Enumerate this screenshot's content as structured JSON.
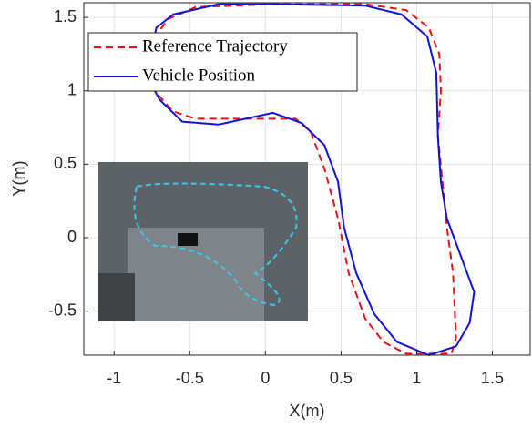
{
  "chart_data": {
    "type": "line",
    "xlabel": "X(m)",
    "ylabel": "Y(m)",
    "xlim": [
      -1.2,
      1.75
    ],
    "ylim": [
      -0.8,
      1.6
    ],
    "xticks": [
      -1,
      -0.5,
      0,
      0.5,
      1,
      1.5
    ],
    "yticks": [
      -0.5,
      0,
      0.5,
      1,
      1.5
    ],
    "grid": true,
    "legend": "upper left",
    "series": [
      {
        "name": "Reference Trajectory",
        "color": "#ee1111",
        "dash": true,
        "x": [
          -0.76,
          -0.61,
          -0.46,
          0.2,
          0.3,
          0.39,
          0.48,
          0.55,
          0.66,
          0.78,
          0.93,
          1.23,
          1.26,
          1.24,
          1.2,
          1.17,
          1.14,
          1.16,
          1.15,
          1.08,
          0.93,
          0.66,
          0.05,
          -0.46,
          -0.64,
          -0.73,
          -0.77,
          -0.76
        ],
        "values": [
          1.03,
          0.86,
          0.81,
          0.81,
          0.72,
          0.47,
          0.13,
          -0.24,
          -0.55,
          -0.71,
          -0.79,
          -0.79,
          -0.68,
          -0.24,
          0.07,
          0.38,
          0.69,
          1.0,
          1.25,
          1.43,
          1.55,
          1.59,
          1.59,
          1.57,
          1.49,
          1.37,
          1.18,
          1.03
        ]
      },
      {
        "name": "Vehicle Position",
        "color": "#1111dd",
        "dash": false,
        "x": [
          -0.7,
          -0.55,
          -0.31,
          -0.13,
          0.05,
          0.24,
          0.39,
          0.48,
          0.52,
          0.6,
          0.72,
          0.87,
          1.08,
          1.26,
          1.35,
          1.38,
          1.29,
          1.2,
          1.16,
          1.14,
          1.13,
          1.07,
          0.9,
          0.66,
          0.05,
          -0.31,
          -0.61,
          -0.72,
          -0.76,
          -0.76,
          -0.7
        ],
        "values": [
          0.94,
          0.79,
          0.77,
          0.81,
          0.85,
          0.78,
          0.63,
          0.38,
          0.07,
          -0.24,
          -0.52,
          -0.71,
          -0.8,
          -0.74,
          -0.58,
          -0.37,
          -0.12,
          0.13,
          0.38,
          0.69,
          1.12,
          1.37,
          1.52,
          1.58,
          1.59,
          1.59,
          1.52,
          1.43,
          1.25,
          1.06,
          0.94
        ]
      }
    ]
  }
}
